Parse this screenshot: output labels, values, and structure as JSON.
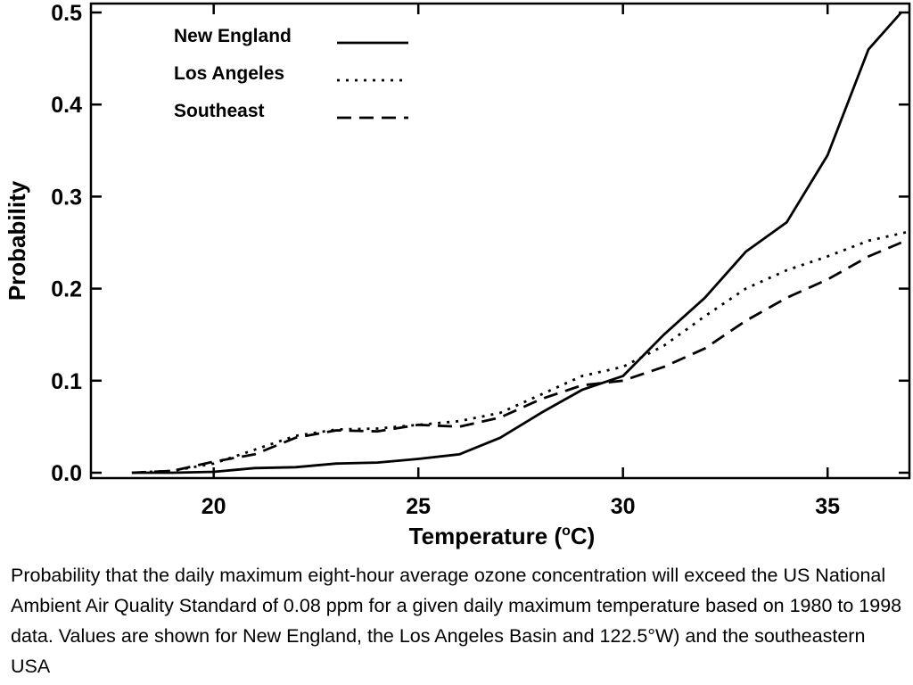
{
  "chart_data": {
    "type": "line",
    "xlabel": "Temperature (",
    "xlabel_sup": "o",
    "xlabel_end": "C)",
    "ylabel": "Probability",
    "xlim": [
      17,
      37
    ],
    "ylim": [
      0,
      0.5
    ],
    "x_ticks": [
      20,
      25,
      30,
      35
    ],
    "x_tick_labels": [
      "20",
      "25",
      "30",
      "35"
    ],
    "y_ticks": [
      0,
      0.1,
      0.2,
      0.3,
      0.4,
      0.5
    ],
    "y_tick_labels": [
      "0.0",
      "0.1",
      "0.2",
      "0.3",
      "0.4",
      "0.5"
    ],
    "grid": false,
    "legend_position": "top-left",
    "series": [
      {
        "name": "New England",
        "style": "solid",
        "points": [
          [
            18,
            0
          ],
          [
            19,
            0
          ],
          [
            20,
            0.001
          ],
          [
            21,
            0.005
          ],
          [
            22,
            0.006
          ],
          [
            23,
            0.01
          ],
          [
            24,
            0.011
          ],
          [
            25,
            0.015
          ],
          [
            26,
            0.02
          ],
          [
            27,
            0.038
          ],
          [
            28,
            0.065
          ],
          [
            29,
            0.09
          ],
          [
            30,
            0.105
          ],
          [
            31,
            0.15
          ],
          [
            32,
            0.19
          ],
          [
            33,
            0.24
          ],
          [
            34,
            0.272
          ],
          [
            35,
            0.345
          ],
          [
            36,
            0.46
          ],
          [
            36.8,
            0.5
          ]
        ]
      },
      {
        "name": "Los Angeles",
        "style": "dotted",
        "points": [
          [
            18,
            0
          ],
          [
            19,
            0.002
          ],
          [
            20,
            0.01
          ],
          [
            21,
            0.025
          ],
          [
            22,
            0.04
          ],
          [
            23,
            0.047
          ],
          [
            24,
            0.048
          ],
          [
            25,
            0.052
          ],
          [
            26,
            0.056
          ],
          [
            27,
            0.065
          ],
          [
            28,
            0.085
          ],
          [
            29,
            0.105
          ],
          [
            30,
            0.115
          ],
          [
            31,
            0.138
          ],
          [
            32,
            0.17
          ],
          [
            33,
            0.2
          ],
          [
            34,
            0.22
          ],
          [
            35,
            0.235
          ],
          [
            36,
            0.252
          ],
          [
            37,
            0.262
          ]
        ]
      },
      {
        "name": "Southeast",
        "style": "dashed",
        "points": [
          [
            18,
            0
          ],
          [
            19,
            0.002
          ],
          [
            20,
            0.012
          ],
          [
            21,
            0.02
          ],
          [
            22,
            0.038
          ],
          [
            23,
            0.046
          ],
          [
            24,
            0.045
          ],
          [
            25,
            0.052
          ],
          [
            26,
            0.05
          ],
          [
            27,
            0.06
          ],
          [
            28,
            0.08
          ],
          [
            29,
            0.095
          ],
          [
            30,
            0.1
          ],
          [
            31,
            0.115
          ],
          [
            32,
            0.135
          ],
          [
            33,
            0.165
          ],
          [
            34,
            0.19
          ],
          [
            35,
            0.21
          ],
          [
            36,
            0.235
          ],
          [
            36.8,
            0.25
          ]
        ]
      }
    ]
  },
  "caption": "Probability that the daily maximum eight-hour average ozone concentration will exceed the US National Ambient Air Quality Standard of 0.08 ppm for a given daily maximum temperature based on 1980 to 1998 data. Values are shown for New England, the Los Angeles Basin and 122.5°W) and the southeastern USA"
}
